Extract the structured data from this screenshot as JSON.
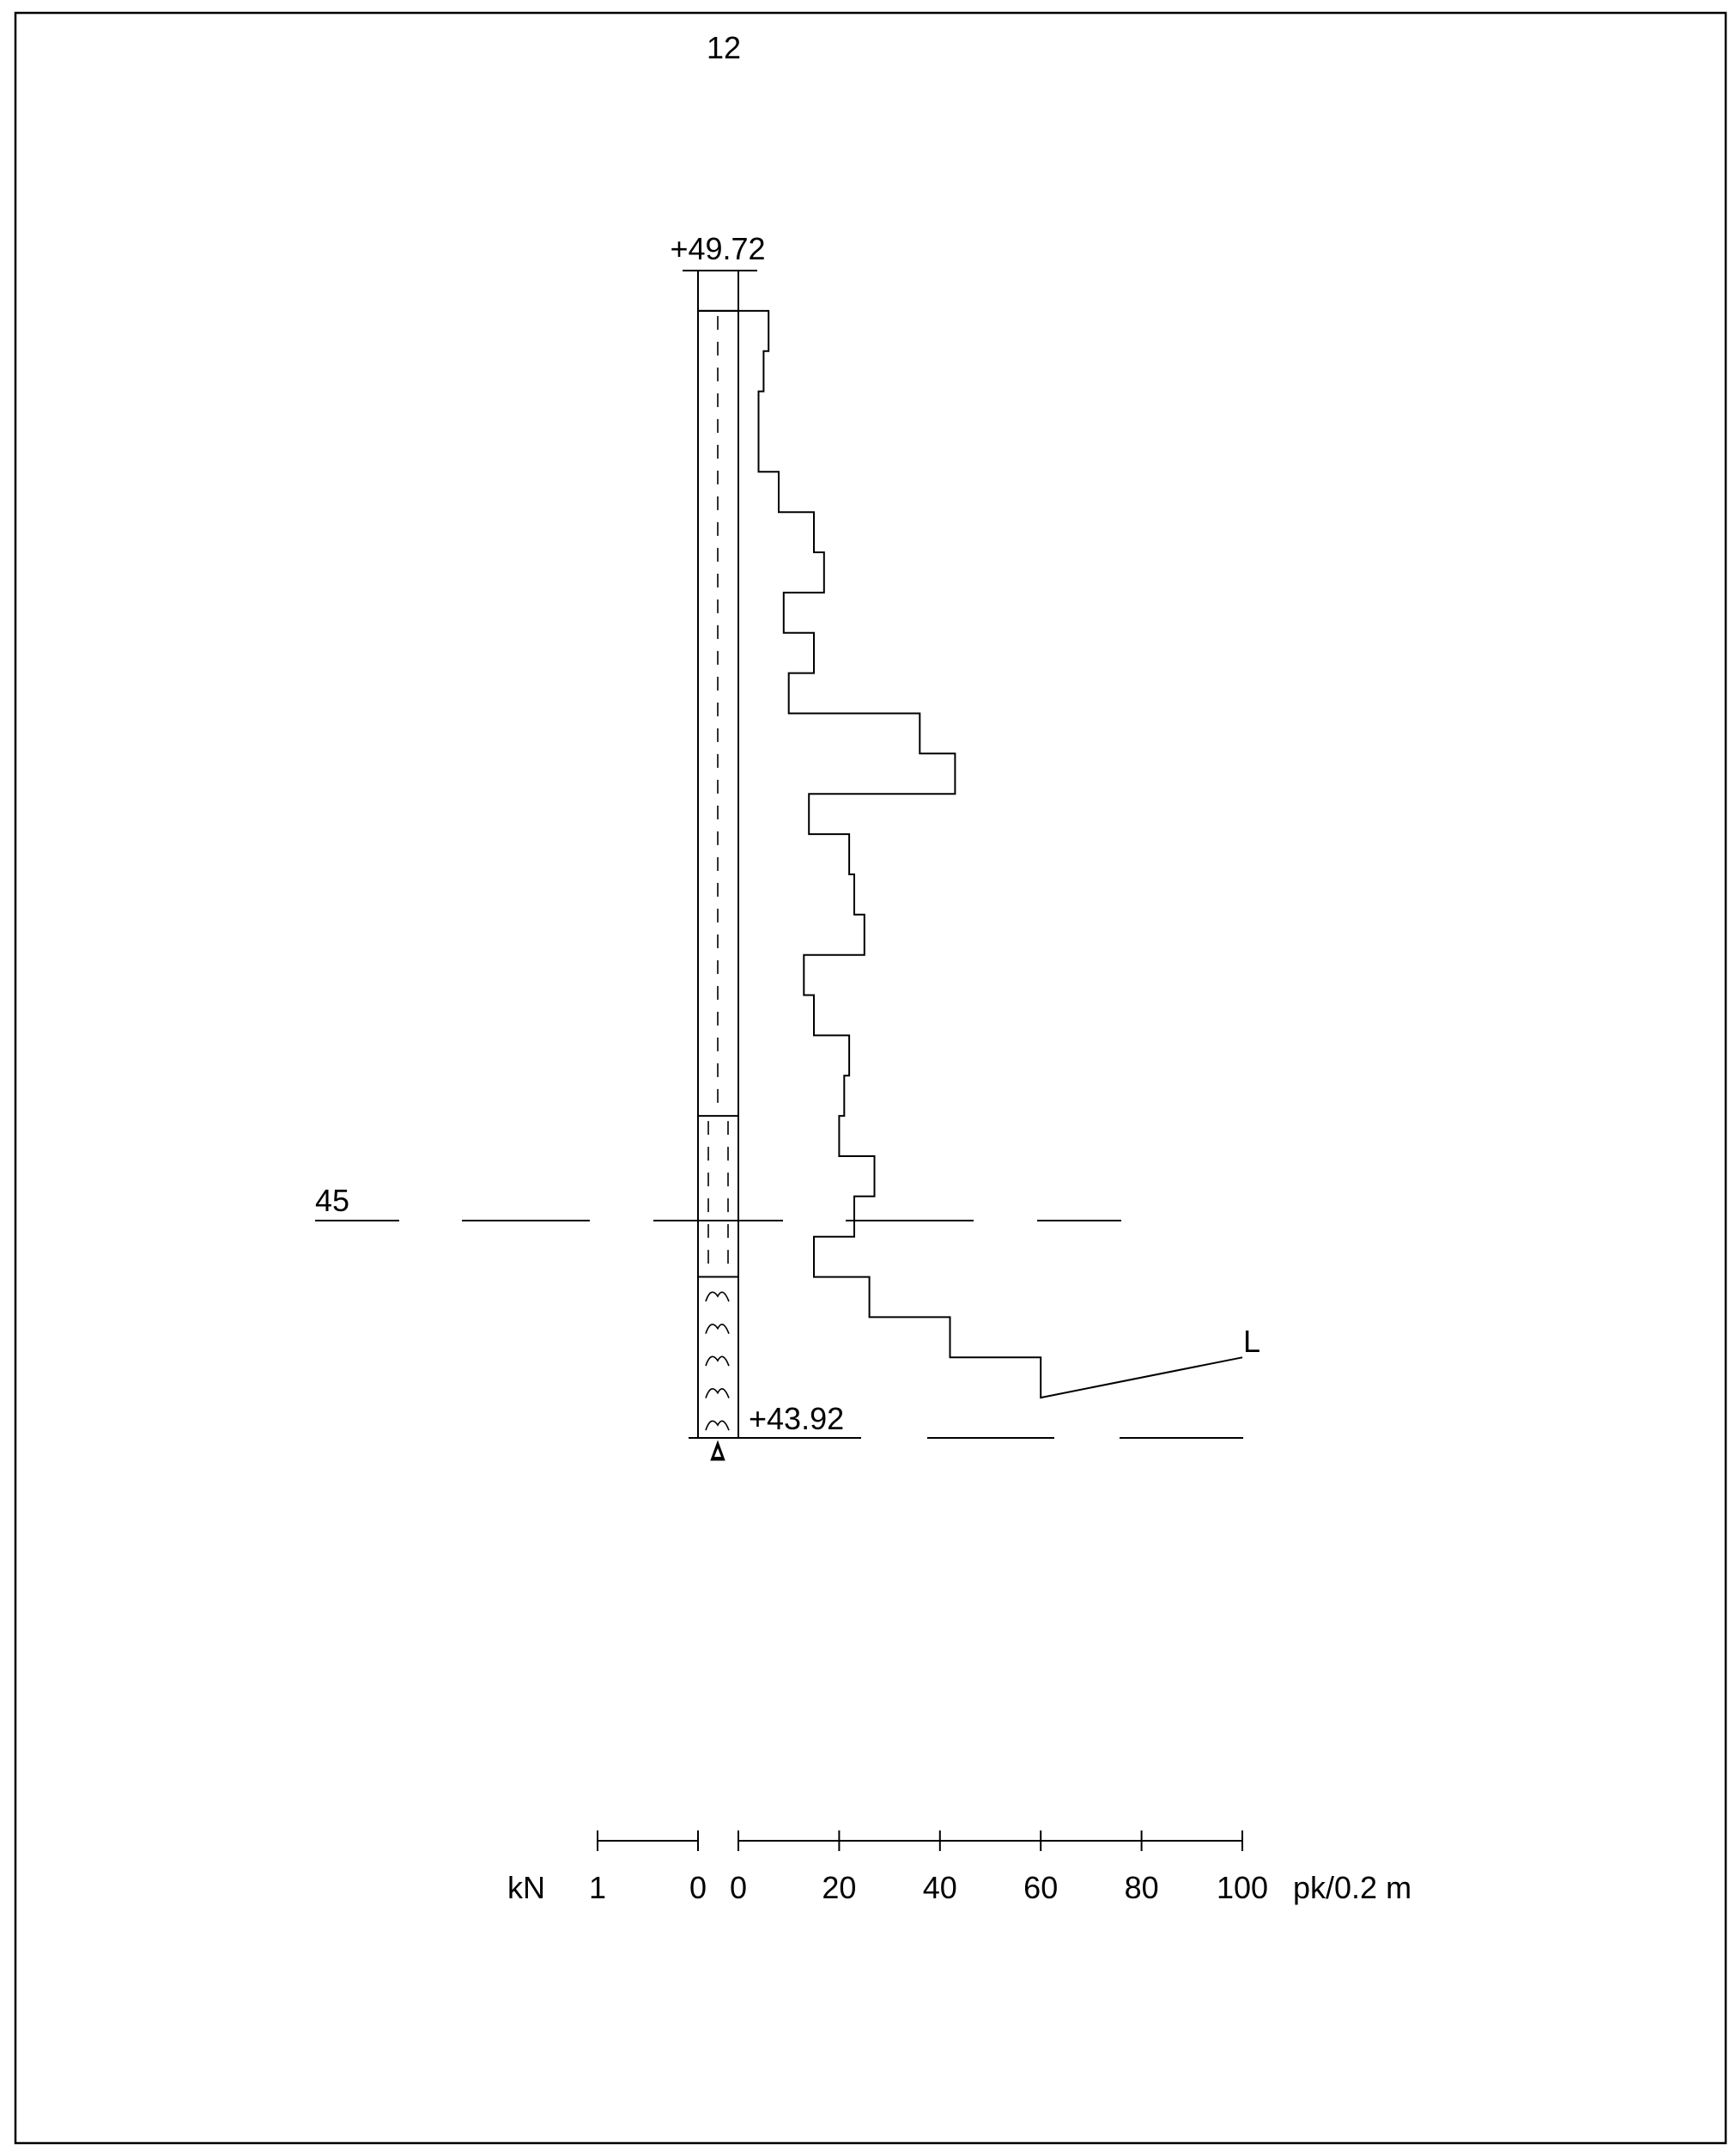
{
  "sheet": {
    "number": "12"
  },
  "profile": {
    "top_level_label": "+49.72",
    "bottom_level_label": "+43.92",
    "reference_level_label": "45",
    "end_marker": "L"
  },
  "chart_data": {
    "type": "line",
    "title": "",
    "step_m": 0.2,
    "top_level": 49.72,
    "bottom_level": 43.92,
    "reference_level": 45,
    "stop_level": 44.32,
    "first_blow_level": 49.52,
    "blows": [
      6,
      5,
      4,
      4,
      8,
      15,
      17,
      9,
      15,
      10,
      36,
      43,
      14,
      22,
      23,
      25,
      13,
      15,
      22,
      21,
      20,
      27,
      23,
      15,
      26,
      42,
      60
    ],
    "last_blow_to": 100,
    "x_axis_right": {
      "unit": "pk/0.2 m",
      "ticks": [
        0,
        20,
        40,
        60,
        80,
        100
      ],
      "tick_labels": [
        "0",
        "20",
        "40",
        "60",
        "80",
        "100"
      ],
      "range": [
        0,
        100
      ]
    },
    "x_axis_left": {
      "unit": "kN",
      "ticks": [
        1,
        0
      ],
      "tick_labels": [
        "1",
        "0"
      ],
      "range": [
        1,
        0
      ]
    },
    "soil_layers": [
      {
        "from_level": 49.52,
        "to_level": 45.52,
        "symbol": "single-dashed"
      },
      {
        "from_level": 45.52,
        "to_level": 44.72,
        "symbol": "double-dashed"
      },
      {
        "from_level": 44.72,
        "to_level": 43.92,
        "symbol": "hatch-arcs"
      }
    ]
  },
  "colors": {
    "ink": "#000000",
    "paper": "#ffffff"
  }
}
